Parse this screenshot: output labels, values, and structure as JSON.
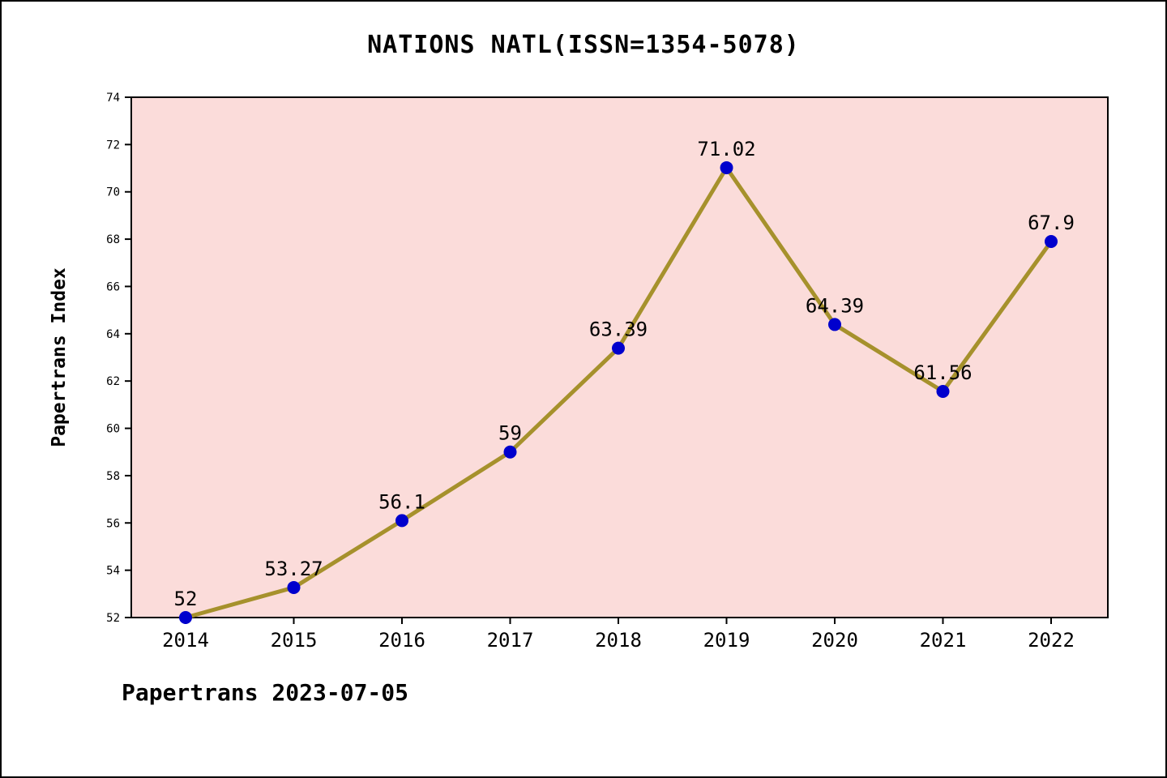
{
  "title": "NATIONS NATL(ISSN=1354-5078)",
  "footer": {
    "text": "Papertrans 2023-07-05"
  },
  "chart_data": {
    "type": "line",
    "title": "NATIONS NATL(ISSN=1354-5078)",
    "xlabel": "",
    "ylabel": "Papertrans Index",
    "categories": [
      "2014",
      "2015",
      "2016",
      "2017",
      "2018",
      "2019",
      "2020",
      "2021",
      "2022"
    ],
    "series": [
      {
        "name": "Papertrans Index",
        "values": [
          52,
          53.27,
          56.1,
          59,
          63.39,
          71.02,
          64.39,
          61.56,
          67.9
        ],
        "point_labels": [
          "52",
          "53.27",
          "56.1",
          "59",
          "63.39",
          "71.02",
          "64.39",
          "61.56",
          "67.9"
        ]
      }
    ],
    "ylim": [
      52,
      74
    ],
    "yticks": [
      52,
      54,
      56,
      58,
      60,
      62,
      64,
      66,
      68,
      70,
      72,
      74
    ],
    "grid": false,
    "legend": "none",
    "colors": {
      "plot_background": "#fbdcda",
      "line": "#a6912c",
      "marker": "#0000cd",
      "axis": "#000000",
      "text": "#000000"
    }
  }
}
